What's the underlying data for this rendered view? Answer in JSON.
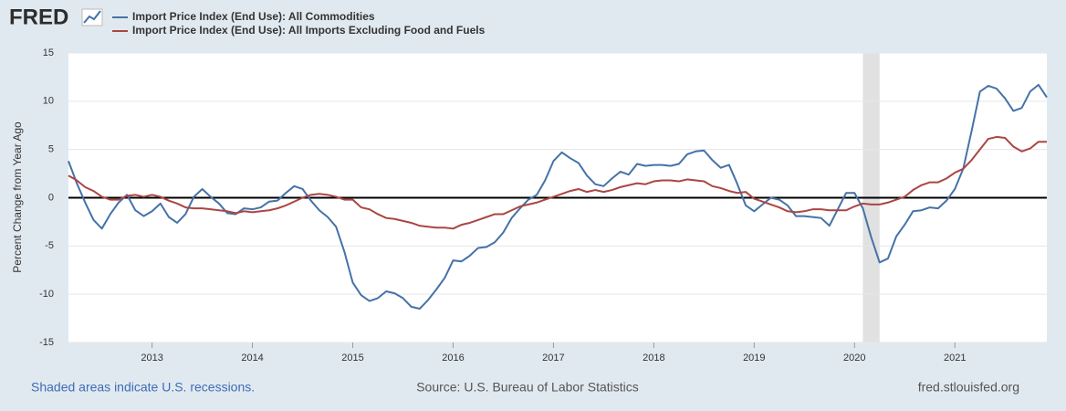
{
  "chart_data": {
    "type": "line",
    "logo": "FRED",
    "y_label": "Percent Change from Year Ago",
    "note": "Shaded areas indicate U.S. recessions.",
    "source": "Source: U.S. Bureau of Labor Statistics",
    "site": "fred.stlouisfed.org",
    "x": [
      "2012-03",
      "2012-04",
      "2012-05",
      "2012-06",
      "2012-07",
      "2012-08",
      "2012-09",
      "2012-10",
      "2012-11",
      "2012-12",
      "2013-01",
      "2013-02",
      "2013-03",
      "2013-04",
      "2013-05",
      "2013-06",
      "2013-07",
      "2013-08",
      "2013-09",
      "2013-10",
      "2013-11",
      "2013-12",
      "2014-01",
      "2014-02",
      "2014-03",
      "2014-04",
      "2014-05",
      "2014-06",
      "2014-07",
      "2014-08",
      "2014-09",
      "2014-10",
      "2014-11",
      "2014-12",
      "2015-01",
      "2015-02",
      "2015-03",
      "2015-04",
      "2015-05",
      "2015-06",
      "2015-07",
      "2015-08",
      "2015-09",
      "2015-10",
      "2015-11",
      "2015-12",
      "2016-01",
      "2016-02",
      "2016-03",
      "2016-04",
      "2016-05",
      "2016-06",
      "2016-07",
      "2016-08",
      "2016-09",
      "2016-10",
      "2016-11",
      "2016-12",
      "2017-01",
      "2017-02",
      "2017-03",
      "2017-04",
      "2017-05",
      "2017-06",
      "2017-07",
      "2017-08",
      "2017-09",
      "2017-10",
      "2017-11",
      "2017-12",
      "2018-01",
      "2018-02",
      "2018-03",
      "2018-04",
      "2018-05",
      "2018-06",
      "2018-07",
      "2018-08",
      "2018-09",
      "2018-10",
      "2018-11",
      "2018-12",
      "2019-01",
      "2019-02",
      "2019-03",
      "2019-04",
      "2019-05",
      "2019-06",
      "2019-07",
      "2019-08",
      "2019-09",
      "2019-10",
      "2019-11",
      "2019-12",
      "2020-01",
      "2020-02",
      "2020-03",
      "2020-04",
      "2020-05",
      "2020-06",
      "2020-07",
      "2020-08",
      "2020-09",
      "2020-10",
      "2020-11",
      "2020-12",
      "2021-01",
      "2021-02",
      "2021-03",
      "2021-04",
      "2021-05",
      "2021-06",
      "2021-07",
      "2021-08",
      "2021-09",
      "2021-10",
      "2021-11",
      "2021-12"
    ],
    "series": [
      {
        "name": "Import Price Index (End Use): All Commodities",
        "color": "#4572a7",
        "values": [
          3.8,
          1.5,
          -0.5,
          -2.3,
          -3.2,
          -1.7,
          -0.5,
          0.3,
          -1.3,
          -1.9,
          -1.4,
          -0.6,
          -2.0,
          -2.6,
          -1.7,
          0.1,
          0.9,
          0.1,
          -0.6,
          -1.6,
          -1.7,
          -1.1,
          -1.2,
          -1.0,
          -0.4,
          -0.3,
          0.5,
          1.2,
          0.9,
          -0.3,
          -1.3,
          -2.0,
          -3.0,
          -5.6,
          -8.8,
          -10.1,
          -10.7,
          -10.4,
          -9.7,
          -9.9,
          -10.4,
          -11.3,
          -11.5,
          -10.6,
          -9.5,
          -8.3,
          -6.5,
          -6.6,
          -6.0,
          -5.2,
          -5.1,
          -4.6,
          -3.6,
          -2.1,
          -1.1,
          -0.2,
          0.3,
          1.8,
          3.8,
          4.7,
          4.1,
          3.6,
          2.3,
          1.4,
          1.2,
          2.0,
          2.7,
          2.4,
          3.5,
          3.3,
          3.4,
          3.4,
          3.3,
          3.5,
          4.5,
          4.8,
          4.9,
          3.9,
          3.1,
          3.4,
          1.4,
          -0.8,
          -1.4,
          -0.7,
          0.0,
          -0.2,
          -0.8,
          -1.9,
          -1.9,
          -2.0,
          -2.1,
          -2.9,
          -1.2,
          0.5,
          0.5,
          -1.1,
          -4.1,
          -6.7,
          -6.3,
          -4.0,
          -2.8,
          -1.4,
          -1.3,
          -1.0,
          -1.1,
          -0.3,
          0.9,
          3.0,
          6.9,
          11.0,
          11.6,
          11.3,
          10.3,
          9.0,
          9.3,
          11.0,
          11.7,
          10.4
        ]
      },
      {
        "name": "Import Price Index (End Use): All Imports Excluding Food and Fuels",
        "color": "#aa4643",
        "values": [
          2.3,
          1.8,
          1.1,
          0.7,
          0.1,
          -0.2,
          -0.2,
          0.2,
          0.3,
          0.1,
          0.3,
          0.1,
          -0.3,
          -0.6,
          -1.0,
          -1.1,
          -1.1,
          -1.2,
          -1.3,
          -1.4,
          -1.6,
          -1.4,
          -1.5,
          -1.4,
          -1.3,
          -1.1,
          -0.8,
          -0.4,
          0.0,
          0.3,
          0.4,
          0.3,
          0.1,
          -0.2,
          -0.2,
          -1.0,
          -1.2,
          -1.7,
          -2.1,
          -2.2,
          -2.4,
          -2.6,
          -2.9,
          -3.0,
          -3.1,
          -3.1,
          -3.2,
          -2.8,
          -2.6,
          -2.3,
          -2.0,
          -1.7,
          -1.7,
          -1.3,
          -0.9,
          -0.7,
          -0.5,
          -0.2,
          0.1,
          0.4,
          0.7,
          0.9,
          0.6,
          0.8,
          0.6,
          0.8,
          1.1,
          1.3,
          1.5,
          1.4,
          1.7,
          1.8,
          1.8,
          1.7,
          1.9,
          1.8,
          1.7,
          1.2,
          1.0,
          0.7,
          0.5,
          0.6,
          -0.1,
          -0.4,
          -0.7,
          -1.0,
          -1.4,
          -1.5,
          -1.4,
          -1.2,
          -1.2,
          -1.3,
          -1.3,
          -1.3,
          -0.9,
          -0.6,
          -0.7,
          -0.7,
          -0.5,
          -0.2,
          0.1,
          0.8,
          1.3,
          1.6,
          1.6,
          2.0,
          2.6,
          3.0,
          3.9,
          5.0,
          6.1,
          6.3,
          6.2,
          5.3,
          4.8,
          5.1,
          5.8,
          5.8
        ]
      }
    ],
    "recessions": [
      [
        "2020-02",
        "2020-04"
      ]
    ],
    "xlim": [
      "2012-03",
      "2021-12"
    ],
    "xticks": [
      2013,
      2014,
      2015,
      2016,
      2017,
      2018,
      2019,
      2020,
      2021
    ],
    "ylim": [
      -15,
      15
    ],
    "yticks": [
      15,
      10,
      5,
      0,
      -5,
      -10,
      -15
    ],
    "grid": true,
    "zero_line": true
  }
}
